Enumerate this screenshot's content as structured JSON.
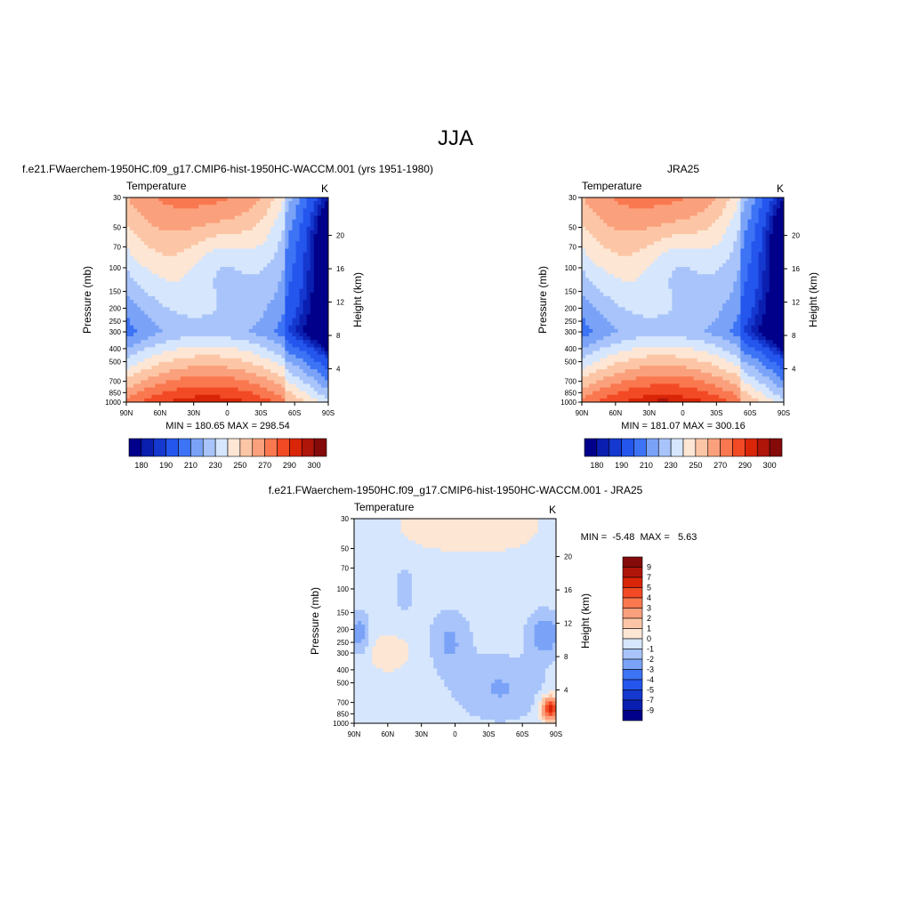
{
  "page_title": "JJA",
  "panels": [
    {
      "title": "f.e21.FWaerchem-1950HC.f09_g17.CMIP6-hist-1950HC-WACCM.001 (yrs 1951-1980)",
      "left_label": "Temperature",
      "right_label": "K",
      "stats": "MIN = 180.65  MAX = 298.54",
      "colorbar_ticks": [
        "180",
        "190",
        "210",
        "230",
        "250",
        "270",
        "290",
        "300"
      ]
    },
    {
      "title": "JRA25",
      "left_label": "Temperature",
      "right_label": "K",
      "stats": "MIN = 181.07  MAX = 300.16",
      "colorbar_ticks": [
        "180",
        "190",
        "210",
        "230",
        "250",
        "270",
        "290",
        "300"
      ]
    },
    {
      "title": "f.e21.FWaerchem-1950HC.f09_g17.CMIP6-hist-1950HC-WACCM.001 - JRA25",
      "left_label": "Temperature",
      "right_label": "K",
      "stats": "MIN =  -5.48  MAX =   5.63",
      "colorbar_ticks": [
        "9",
        "7",
        "5",
        "4",
        "3",
        "2",
        "1",
        "0",
        "-1",
        "-2",
        "-3",
        "-4",
        "-5",
        "-7",
        "-9"
      ]
    }
  ],
  "colors": {
    "abs_scale": [
      "#00008a",
      "#0a1fb0",
      "#1538cf",
      "#2456ee",
      "#3d73f5",
      "#7aa3f8",
      "#a8c4fa",
      "#d6e6fd",
      "#fde6d4",
      "#fcc6a6",
      "#fba07c",
      "#f9784f",
      "#f24a25",
      "#d92508",
      "#b0150a",
      "#850a0a"
    ],
    "diff_scale": [
      "#00008a",
      "#0a1fb0",
      "#1538cf",
      "#2456ee",
      "#3d73f5",
      "#7aa3f8",
      "#a8c4fa",
      "#d6e6fd",
      "#fde6d4",
      "#fcc6a6",
      "#fba07c",
      "#f9784f",
      "#f24a25",
      "#d92508",
      "#b0150a",
      "#850a0a"
    ]
  },
  "chart_data": [
    {
      "type": "heatmap",
      "title": "f.e21.FWaerchem-1950HC.f09_g17.CMIP6-hist-1950HC-WACCM.001 (yrs 1951-1980)",
      "variable": "Temperature",
      "units": "K",
      "xlabel": "",
      "ylabel": "Pressure (mb)",
      "y2label": "Height (km)",
      "x_ticks": [
        "90N",
        "60N",
        "30N",
        "0",
        "30S",
        "60S",
        "90S"
      ],
      "x_values": [
        90,
        60,
        30,
        0,
        -30,
        -60,
        -90
      ],
      "y_ticks": [
        30,
        50,
        70,
        100,
        150,
        200,
        250,
        300,
        400,
        500,
        700,
        850,
        1000
      ],
      "y2_ticks": [
        4,
        8,
        12,
        16,
        20
      ],
      "ylim": [
        1000,
        30
      ],
      "y_scale": "log",
      "min": 180.65,
      "max": 298.54,
      "levels": [
        180,
        185,
        190,
        200,
        210,
        220,
        230,
        240,
        250,
        260,
        270,
        280,
        290,
        295,
        300
      ]
    },
    {
      "type": "heatmap",
      "title": "JRA25",
      "variable": "Temperature",
      "units": "K",
      "xlabel": "",
      "ylabel": "Pressure (mb)",
      "y2label": "Height (km)",
      "x_ticks": [
        "90N",
        "60N",
        "30N",
        "0",
        "30S",
        "60S",
        "90S"
      ],
      "x_values": [
        90,
        60,
        30,
        0,
        -30,
        -60,
        -90
      ],
      "y_ticks": [
        30,
        50,
        70,
        100,
        150,
        200,
        250,
        300,
        400,
        500,
        700,
        850,
        1000
      ],
      "y2_ticks": [
        4,
        8,
        12,
        16,
        20
      ],
      "ylim": [
        1000,
        30
      ],
      "y_scale": "log",
      "min": 181.07,
      "max": 300.16,
      "levels": [
        180,
        185,
        190,
        200,
        210,
        220,
        230,
        240,
        250,
        260,
        270,
        280,
        290,
        295,
        300
      ]
    },
    {
      "type": "heatmap",
      "title": "f.e21.FWaerchem-1950HC.f09_g17.CMIP6-hist-1950HC-WACCM.001 - JRA25",
      "variable": "Temperature",
      "units": "K",
      "xlabel": "",
      "ylabel": "Pressure (mb)",
      "y2label": "Height (km)",
      "x_ticks": [
        "90N",
        "60N",
        "30N",
        "0",
        "30S",
        "60S",
        "90S"
      ],
      "x_values": [
        90,
        60,
        30,
        0,
        -30,
        -60,
        -90
      ],
      "y_ticks": [
        30,
        50,
        70,
        100,
        150,
        200,
        250,
        300,
        400,
        500,
        700,
        850,
        1000
      ],
      "y2_ticks": [
        4,
        8,
        12,
        16,
        20
      ],
      "ylim": [
        1000,
        30
      ],
      "y_scale": "log",
      "min": -5.48,
      "max": 5.63,
      "levels": [
        -9,
        -7,
        -5,
        -4,
        -3,
        -2,
        -1,
        0,
        1,
        2,
        3,
        4,
        5,
        7,
        9
      ]
    }
  ]
}
